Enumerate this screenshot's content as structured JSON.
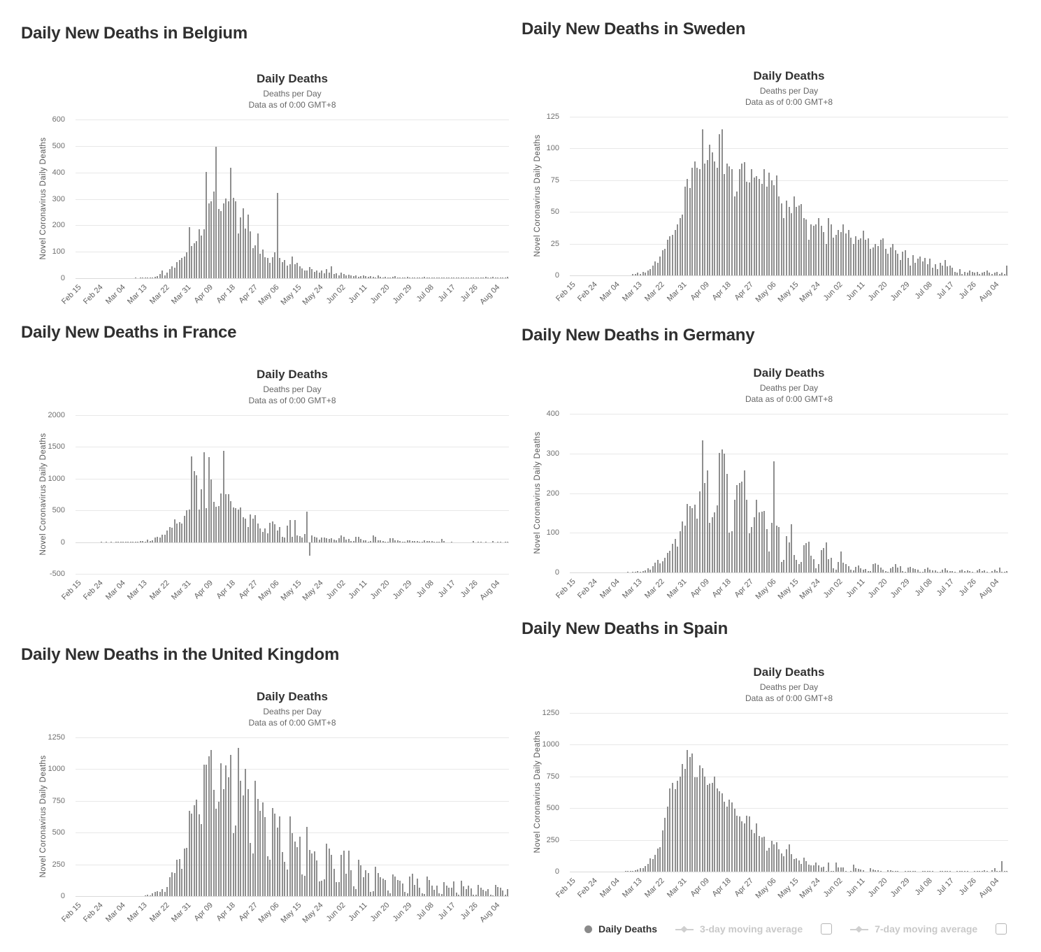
{
  "colors": {
    "bar": "#8e8e8e",
    "grid": "#e8e8e8",
    "zero_line": "#d9d9d9",
    "heading_text": "#2f2f2f",
    "title_text": "#333333",
    "subtitle_text": "#666666",
    "tick_text": "#5f5f5f",
    "legend_inactive": "#c9c9c9"
  },
  "x_axis": {
    "n_days": 177,
    "tick_labels": [
      "Feb 15",
      "Feb 24",
      "Mar 04",
      "Mar 13",
      "Mar 22",
      "Mar 31",
      "Apr 09",
      "Apr 18",
      "Apr 27",
      "May 06",
      "May 15",
      "May 24",
      "Jun 02",
      "Jun 11",
      "Jun 20",
      "Jun 29",
      "Jul 08",
      "Jul 17",
      "Jul 26",
      "Aug 04"
    ],
    "tick_day_indices": [
      0,
      9,
      18,
      27,
      36,
      45,
      54,
      63,
      72,
      81,
      90,
      99,
      108,
      117,
      126,
      135,
      144,
      153,
      162,
      171
    ]
  },
  "legend": {
    "items": [
      {
        "marker": "circle",
        "label": "Daily Deaths",
        "state": "active"
      },
      {
        "marker": "diamond-line",
        "label": "3-day moving average",
        "state": "inactive",
        "has_checkbox": true
      },
      {
        "marker": "diamond-line",
        "label": "7-day moving average",
        "state": "inactive",
        "has_checkbox": true
      }
    ]
  },
  "chart_data": [
    {
      "id": "belgium",
      "type": "bar",
      "heading": "Daily New Deaths in Belgium",
      "title": "Daily Deaths",
      "subtitle1": "Deaths per Day",
      "subtitle2": "Data as of 0:00 GMT+8",
      "ylabel": "Novel Coronavirus Daily Deaths",
      "ylim": [
        0,
        600
      ],
      "yticks": [
        0,
        100,
        200,
        300,
        400,
        500,
        600
      ],
      "x_start_label": "Feb 15",
      "values": [
        0,
        0,
        0,
        0,
        0,
        0,
        0,
        0,
        0,
        0,
        0,
        0,
        0,
        0,
        0,
        0,
        0,
        0,
        0,
        0,
        0,
        0,
        0,
        0,
        1,
        0,
        1,
        1,
        2,
        1,
        2,
        4,
        5,
        8,
        16,
        30,
        12,
        20,
        34,
        45,
        41,
        60,
        69,
        78,
        82,
        98,
        192,
        123,
        131,
        140,
        185,
        161,
        184,
        403,
        283,
        291,
        327,
        496,
        262,
        254,
        283,
        301,
        290,
        417,
        305,
        290,
        170,
        230,
        264,
        189,
        241,
        178,
        113,
        124,
        170,
        93,
        109,
        80,
        76,
        58,
        80,
        97,
        322,
        76,
        60,
        70,
        47,
        52,
        82,
        54,
        58,
        45,
        38,
        30,
        28,
        42,
        35,
        25,
        30,
        20,
        28,
        18,
        35,
        22,
        45,
        15,
        18,
        12,
        20,
        16,
        10,
        14,
        12,
        8,
        10,
        6,
        9,
        12,
        7,
        5,
        8,
        6,
        4,
        10,
        5,
        3,
        6,
        4,
        3,
        5,
        8,
        2,
        4,
        3,
        2,
        5,
        3,
        2,
        4,
        1,
        3,
        2,
        6,
        2,
        1,
        3,
        2,
        1,
        2,
        4,
        1,
        2,
        1,
        3,
        2,
        1,
        2,
        1,
        2,
        3,
        1,
        2,
        4,
        2,
        1,
        3,
        2,
        5,
        4,
        3,
        6,
        2,
        3,
        4,
        2,
        3,
        6
      ]
    },
    {
      "id": "sweden",
      "type": "bar",
      "heading": "Daily New Deaths in Sweden",
      "title": "Daily Deaths",
      "subtitle1": "Deaths per Day",
      "subtitle2": "Data as of 0:00 GMT+8",
      "ylabel": "Novel Coronavirus Daily Deaths",
      "ylim": [
        0,
        125
      ],
      "yticks": [
        0,
        25,
        50,
        75,
        100,
        125
      ],
      "x_start_label": "Feb 15",
      "values": [
        0,
        0,
        0,
        0,
        0,
        0,
        0,
        0,
        0,
        0,
        0,
        0,
        0,
        0,
        0,
        0,
        0,
        0,
        0,
        0,
        0,
        0,
        0,
        0,
        0,
        1,
        1,
        2,
        1,
        3,
        2,
        4,
        5,
        8,
        11,
        10,
        15,
        20,
        21,
        28,
        31,
        32,
        36,
        40,
        45,
        48,
        70,
        76,
        69,
        85,
        90,
        85,
        84,
        115,
        88,
        91,
        103,
        97,
        90,
        85,
        111,
        115,
        80,
        88,
        86,
        84,
        62,
        66,
        84,
        88,
        89,
        74,
        73,
        84,
        77,
        78,
        76,
        72,
        84,
        70,
        81,
        75,
        71,
        79,
        62,
        57,
        45,
        59,
        54,
        49,
        62,
        54,
        55,
        56,
        45,
        44,
        28,
        40,
        39,
        40,
        45,
        39,
        34,
        25,
        45,
        40,
        30,
        32,
        36,
        34,
        40,
        33,
        36,
        30,
        25,
        31,
        28,
        29,
        35,
        28,
        29,
        21,
        22,
        25,
        23,
        28,
        29,
        21,
        17,
        22,
        25,
        20,
        17,
        12,
        19,
        20,
        14,
        8,
        16,
        10,
        13,
        15,
        11,
        14,
        9,
        13,
        6,
        9,
        5,
        10,
        8,
        12,
        7,
        8,
        6,
        3,
        2,
        5,
        1,
        3,
        2,
        4,
        3,
        2,
        3,
        1,
        2,
        3,
        4,
        2,
        1,
        2,
        3,
        1,
        2,
        1,
        8
      ]
    },
    {
      "id": "france",
      "type": "bar",
      "heading": "Daily New Deaths in France",
      "title": "Daily Deaths",
      "subtitle1": "Deaths per Day",
      "subtitle2": "Data as of 0:00 GMT+8",
      "ylabel": "Novel Coronavirus Daily Deaths",
      "ylim": [
        -500,
        2000
      ],
      "yticks": [
        -500,
        0,
        500,
        1000,
        1500,
        2000
      ],
      "x_start_label": "Feb 15",
      "values": [
        0,
        0,
        0,
        0,
        0,
        0,
        0,
        0,
        0,
        0,
        1,
        0,
        1,
        0,
        1,
        0,
        1,
        2,
        1,
        3,
        1,
        2,
        3,
        4,
        6,
        10,
        13,
        18,
        12,
        36,
        21,
        27,
        69,
        89,
        78,
        112,
        112,
        186,
        240,
        231,
        365,
        299,
        319,
        292,
        418,
        499,
        509,
        1355,
        1120,
        1053,
        518,
        833,
        1417,
        541,
        1341,
        987,
        635,
        561,
        574,
        762,
        1438,
        753,
        761,
        642,
        547,
        531,
        516,
        544,
        389,
        369,
        242,
        437,
        367,
        427,
        289,
        218,
        166,
        218,
        135,
        306,
        330,
        278,
        178,
        243,
        80,
        70,
        263,
        348,
        83,
        351,
        104,
        96,
        70,
        131,
        483,
        -217,
        110,
        83,
        74,
        35,
        70,
        73,
        66,
        52,
        57,
        43,
        31,
        57,
        107,
        81,
        44,
        46,
        13,
        23,
        87,
        80,
        46,
        27,
        28,
        9,
        23,
        108,
        81,
        28,
        26,
        20,
        7,
        9,
        57,
        60,
        28,
        25,
        18,
        8,
        10,
        30,
        27,
        18,
        20,
        14,
        7,
        6,
        33,
        18,
        16,
        14,
        9,
        3,
        4,
        50,
        17,
        0,
        0,
        7,
        0,
        0,
        0,
        0,
        0,
        0,
        0,
        0,
        14,
        0,
        5,
        3,
        0,
        9,
        0,
        0,
        17,
        0,
        5,
        11,
        0,
        4,
        12
      ]
    },
    {
      "id": "germany",
      "type": "bar",
      "heading": "Daily New Deaths in Germany",
      "title": "Daily Deaths",
      "subtitle1": "Deaths per Day",
      "subtitle2": "Data as of 0:00 GMT+8",
      "ylabel": "Novel Coronavirus Daily Deaths",
      "ylim": [
        0,
        400
      ],
      "yticks": [
        0,
        100,
        200,
        300,
        400
      ],
      "x_start_label": "Feb 15",
      "values": [
        0,
        0,
        0,
        0,
        0,
        0,
        0,
        0,
        0,
        0,
        0,
        0,
        0,
        0,
        0,
        0,
        0,
        0,
        0,
        0,
        0,
        0,
        0,
        2,
        0,
        1,
        2,
        3,
        2,
        4,
        5,
        11,
        8,
        16,
        24,
        31,
        23,
        29,
        37,
        49,
        55,
        72,
        84,
        66,
        104,
        128,
        118,
        173,
        168,
        163,
        171,
        136,
        204,
        333,
        226,
        258,
        126,
        140,
        152,
        170,
        301,
        310,
        299,
        248,
        101,
        104,
        183,
        220,
        226,
        229,
        258,
        184,
        98,
        115,
        139,
        184,
        151,
        153,
        155,
        110,
        53,
        125,
        280,
        118,
        115,
        27,
        32,
        91,
        76,
        122,
        45,
        31,
        21,
        26,
        69,
        74,
        77,
        42,
        33,
        11,
        21,
        56,
        62,
        75,
        33,
        37,
        10,
        8,
        27,
        53,
        24,
        22,
        16,
        7,
        5,
        14,
        18,
        10,
        8,
        9,
        4,
        3,
        22,
        23,
        20,
        12,
        8,
        3,
        2,
        10,
        14,
        21,
        12,
        16,
        3,
        2,
        12,
        14,
        11,
        9,
        7,
        2,
        1,
        9,
        12,
        7,
        5,
        6,
        1,
        2,
        8,
        10,
        5,
        3,
        4,
        1,
        0,
        5,
        7,
        4,
        6,
        3,
        1,
        0,
        6,
        9,
        4,
        5,
        2,
        0,
        4,
        7,
        3,
        12,
        2,
        1,
        4
      ]
    },
    {
      "id": "united-kingdom",
      "type": "bar",
      "heading": "Daily New Deaths in the United Kingdom",
      "title": "Daily Deaths",
      "subtitle1": "Deaths per Day",
      "subtitle2": "Data as of 0:00 GMT+8",
      "ylabel": "Novel Coronavirus Daily Deaths",
      "ylim": [
        0,
        1250
      ],
      "yticks": [
        0,
        250,
        500,
        750,
        1000,
        1250
      ],
      "x_start_label": "Feb 15",
      "values": [
        0,
        0,
        0,
        0,
        0,
        0,
        0,
        0,
        0,
        0,
        0,
        0,
        0,
        0,
        0,
        0,
        0,
        0,
        0,
        0,
        0,
        0,
        0,
        0,
        0,
        0,
        0,
        0,
        1,
        14,
        4,
        21,
        33,
        40,
        33,
        56,
        35,
        74,
        149,
        186,
        183,
        284,
        294,
        214,
        374,
        382,
        670,
        652,
        714,
        760,
        644,
        568,
        1038,
        1034,
        1103,
        1152,
        839,
        686,
        744,
        1044,
        842,
        1029,
        935,
        1115,
        498,
        559,
        1166,
        909,
        795,
        1005,
        843,
        420,
        338,
        909,
        765,
        674,
        739,
        621,
        315,
        288,
        693,
        649,
        539,
        626,
        346,
        268,
        210,
        627,
        494,
        428,
        384,
        468,
        170,
        160,
        545,
        363,
        338,
        351,
        282,
        118,
        121,
        134,
        412,
        377,
        324,
        215,
        113,
        111,
        324,
        359,
        176,
        357,
        204,
        77,
        55,
        286,
        245,
        151,
        202,
        181,
        36,
        38,
        233,
        184,
        149,
        136,
        128,
        43,
        25,
        171,
        154,
        126,
        123,
        100,
        36,
        25,
        155,
        176,
        89,
        137,
        67,
        22,
        16,
        155,
        126,
        85,
        48,
        85,
        21,
        15,
        110,
        85,
        66,
        66,
        114,
        28,
        11,
        119,
        79,
        53,
        83,
        61,
        14,
        10,
        88,
        65,
        49,
        38,
        54,
        9,
        8,
        89,
        70,
        65,
        45,
        11,
        55
      ]
    },
    {
      "id": "spain",
      "type": "bar",
      "heading": "Daily New Deaths in Spain",
      "title": "Daily Deaths",
      "subtitle1": "Deaths per Day",
      "subtitle2": "Data as of 0:00 GMT+8",
      "ylabel": "Novel Coronavirus Daily Deaths",
      "ylim": [
        0,
        1250
      ],
      "yticks": [
        0,
        250,
        500,
        750,
        1000,
        1250
      ],
      "x_start_label": "Feb 15",
      "values": [
        0,
        0,
        0,
        0,
        0,
        0,
        0,
        0,
        0,
        0,
        0,
        0,
        0,
        0,
        0,
        0,
        0,
        0,
        0,
        0,
        0,
        0,
        2,
        3,
        5,
        8,
        10,
        17,
        26,
        30,
        42,
        63,
        107,
        98,
        134,
        183,
        195,
        324,
        424,
        514,
        655,
        700,
        650,
        714,
        749,
        849,
        812,
        961,
        906,
        932,
        744,
        743,
        839,
        818,
        747,
        683,
        694,
        700,
        747,
        655,
        634,
        618,
        551,
        510,
        565,
        547,
        495,
        440,
        435,
        399,
        378,
        440,
        435,
        331,
        301,
        381,
        281,
        268,
        276,
        164,
        185,
        244,
        213,
        229,
        179,
        143,
        123,
        176,
        217,
        138,
        102,
        104,
        87,
        59,
        110,
        83,
        56,
        48,
        52,
        70,
        50,
        35,
        39,
        1,
        74,
        2,
        4,
        72,
        36,
        34,
        32,
        1,
        0,
        1,
        56,
        27,
        25,
        18,
        10,
        0,
        0,
        26,
        17,
        12,
        13,
        8,
        0,
        0,
        12,
        9,
        6,
        8,
        4,
        0,
        0,
        8,
        5,
        7,
        4,
        3,
        0,
        0,
        5,
        4,
        6,
        3,
        2,
        0,
        0,
        4,
        3,
        5,
        2,
        3,
        0,
        0,
        3,
        2,
        4,
        3,
        2,
        0,
        0,
        5,
        8,
        6,
        4,
        9,
        2,
        0,
        12,
        26,
        2,
        3,
        84,
        1,
        2
      ]
    }
  ]
}
